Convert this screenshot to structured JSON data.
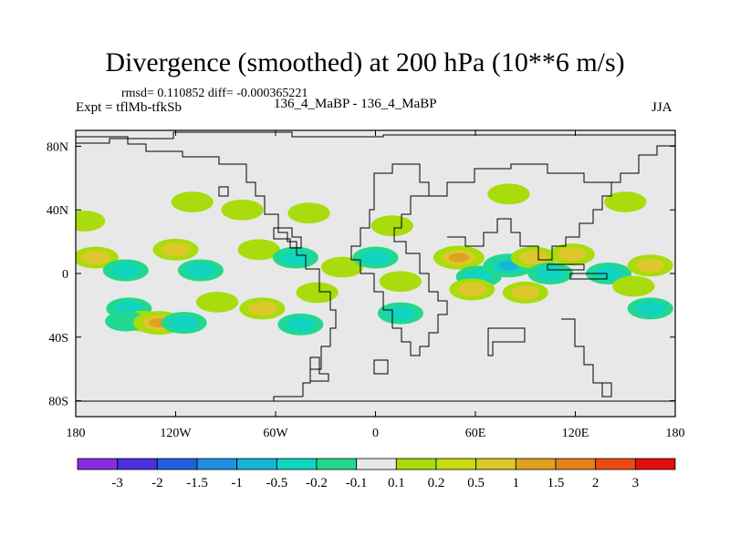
{
  "header": {
    "title": "Divergence (smoothed) at 200 hPa (10**6 m/s)",
    "stats": "rmsd= 0.110852 diff= -0.000365221",
    "experiment": "Expt = tflMb-tfkSb",
    "center_label": "136_4_MaBP - 136_4_MaBP",
    "season": "JJA"
  },
  "chart_data": {
    "type": "heatmap",
    "title": "Divergence (smoothed) at 200 hPa (10**6 m/s)",
    "xlabel": "",
    "ylabel": "",
    "xlim": [
      -180,
      180
    ],
    "ylim": [
      -90,
      90
    ],
    "x_ticks": [
      {
        "value": -180,
        "label": "180"
      },
      {
        "value": -120,
        "label": "120W"
      },
      {
        "value": -60,
        "label": "60W"
      },
      {
        "value": 0,
        "label": "0"
      },
      {
        "value": 60,
        "label": "60E"
      },
      {
        "value": 120,
        "label": "120E"
      },
      {
        "value": 180,
        "label": "180"
      }
    ],
    "y_ticks": [
      {
        "value": 80,
        "label": "80N"
      },
      {
        "value": 40,
        "label": "40N"
      },
      {
        "value": 0,
        "label": "0"
      },
      {
        "value": -40,
        "label": "40S"
      },
      {
        "value": -80,
        "label": "80S"
      }
    ],
    "colorbar": {
      "colors": [
        "#8a2be2",
        "#4b2ee0",
        "#1f5fe0",
        "#1e8fe0",
        "#15b5d6",
        "#10d4c0",
        "#22d890",
        "#e8e8e8",
        "#a8dc0c",
        "#c8dc10",
        "#dcc82a",
        "#e0a020",
        "#e88018",
        "#ec4a12",
        "#e01010"
      ],
      "labels": [
        "-3",
        "-2",
        "-1.5",
        "-1",
        "-0.5",
        "-0.2",
        "-0.1",
        "0.1",
        "0.2",
        "0.5",
        "1",
        "1.5",
        "2",
        "3"
      ]
    },
    "anomalies": [
      {
        "lon": -175,
        "lat": 33,
        "level": 0.2
      },
      {
        "lon": -168,
        "lat": 10,
        "level": 0.5
      },
      {
        "lon": -150,
        "lat": 2,
        "level": -0.5
      },
      {
        "lon": -148,
        "lat": -22,
        "level": -0.5
      },
      {
        "lon": -140,
        "lat": -30,
        "level": 0.2
      },
      {
        "lon": -150,
        "lat": -30,
        "level": -0.1
      },
      {
        "lon": -130,
        "lat": -31,
        "level": 1.0
      },
      {
        "lon": -115,
        "lat": -31,
        "level": -0.5
      },
      {
        "lon": -120,
        "lat": 15,
        "level": 0.5
      },
      {
        "lon": -105,
        "lat": 2,
        "level": -0.5
      },
      {
        "lon": -95,
        "lat": -18,
        "level": 0.2
      },
      {
        "lon": -68,
        "lat": -22,
        "level": 0.5
      },
      {
        "lon": -70,
        "lat": 15,
        "level": 0.2
      },
      {
        "lon": -48,
        "lat": 10,
        "level": -0.5
      },
      {
        "lon": -35,
        "lat": -12,
        "level": 0.2
      },
      {
        "lon": -45,
        "lat": -32,
        "level": -0.5
      },
      {
        "lon": -20,
        "lat": 4,
        "level": 0.2
      },
      {
        "lon": 0,
        "lat": 10,
        "level": -0.5
      },
      {
        "lon": 15,
        "lat": -5,
        "level": 0.2
      },
      {
        "lon": 15,
        "lat": -25,
        "level": -0.5
      },
      {
        "lon": 50,
        "lat": 10,
        "level": 1.0
      },
      {
        "lon": 62,
        "lat": -2,
        "level": -0.5
      },
      {
        "lon": 58,
        "lat": -10,
        "level": 0.5
      },
      {
        "lon": 80,
        "lat": 5,
        "level": -1.0
      },
      {
        "lon": 95,
        "lat": 10,
        "level": 0.5
      },
      {
        "lon": 90,
        "lat": -12,
        "level": 0.5
      },
      {
        "lon": 105,
        "lat": 0,
        "level": -0.5
      },
      {
        "lon": 118,
        "lat": 12,
        "level": 0.5
      },
      {
        "lon": 140,
        "lat": 0,
        "level": -0.5
      },
      {
        "lon": 155,
        "lat": -8,
        "level": 0.2
      },
      {
        "lon": 165,
        "lat": 5,
        "level": 0.5
      },
      {
        "lon": 165,
        "lat": -22,
        "level": -0.5
      },
      {
        "lon": -80,
        "lat": 40,
        "level": 0.2
      },
      {
        "lon": -110,
        "lat": 45,
        "level": 0.2
      },
      {
        "lon": -40,
        "lat": 38,
        "level": 0.2
      },
      {
        "lon": 10,
        "lat": 30,
        "level": 0.2
      },
      {
        "lon": 80,
        "lat": 50,
        "level": 0.2
      },
      {
        "lon": 150,
        "lat": 45,
        "level": 0.2
      }
    ]
  }
}
